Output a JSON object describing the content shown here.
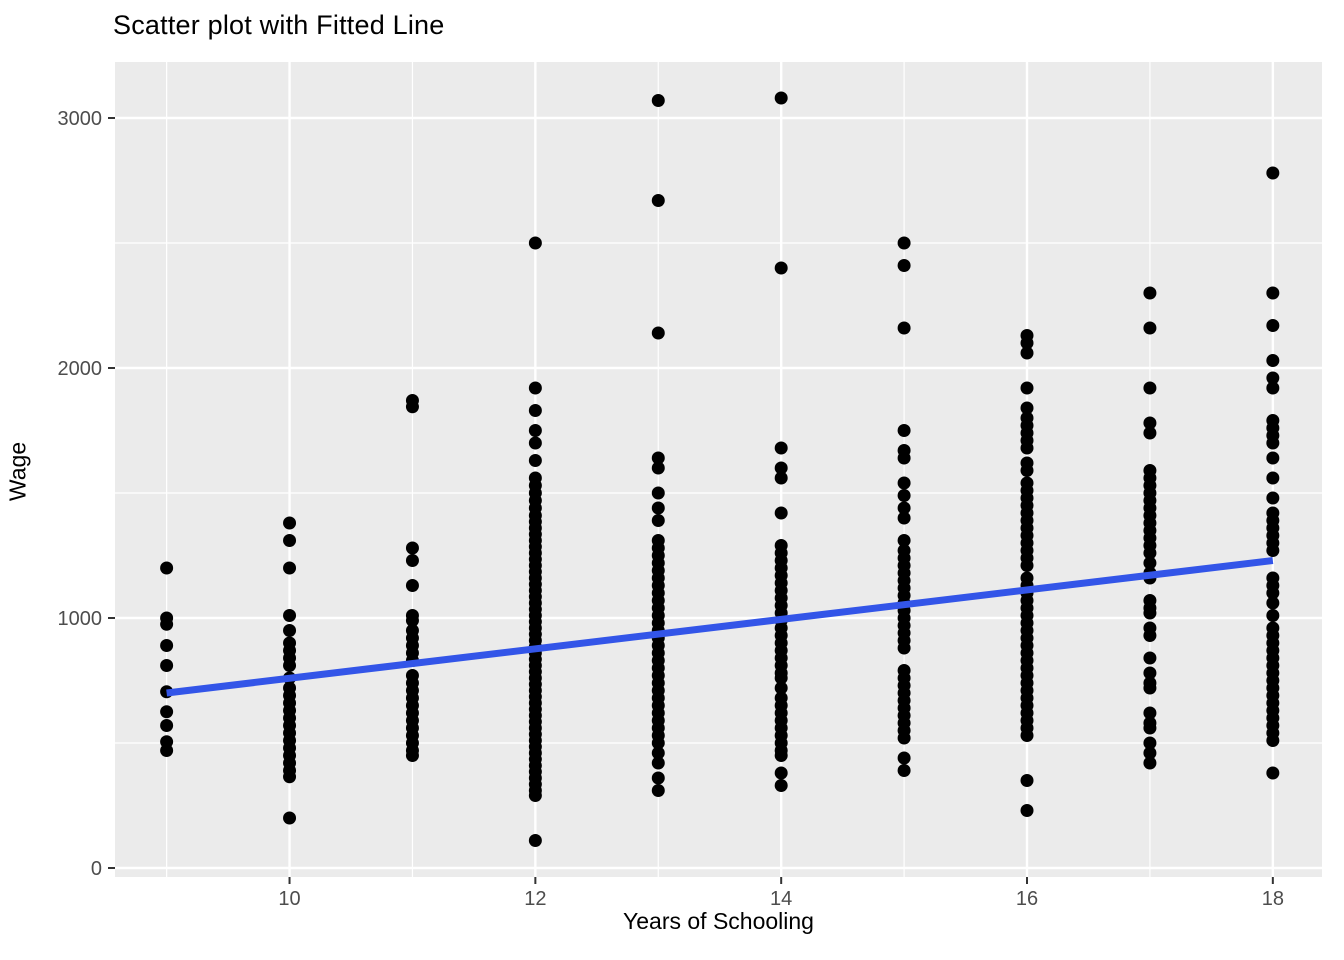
{
  "title": "Scatter plot with Fitted Line",
  "colors": {
    "page_bg": "#FFFFFF",
    "panel_bg": "#EBEBEB",
    "grid": "#FFFFFF",
    "point": "#000000",
    "fit_line": "#3355E8",
    "axis_text": "#4D4D4D",
    "tick_mark": "#333333",
    "title_text": "#000000"
  },
  "chart_data": {
    "type": "scatter",
    "title": "Scatter plot with Fitted Line",
    "xlabel": "Years of Schooling",
    "ylabel": "Wage",
    "x_ticks": [
      10,
      12,
      14,
      16,
      18
    ],
    "x_minor_ticks": [
      9,
      11,
      13,
      15,
      17
    ],
    "y_ticks": [
      0,
      1000,
      2000,
      3000
    ],
    "y_minor_ticks": [
      500,
      1500,
      2500
    ],
    "xlim": [
      8.58,
      18.4
    ],
    "ylim": [
      -36,
      3224
    ],
    "grid": true,
    "legend": false,
    "point_radius_px": 6.5,
    "fitted_line": {
      "x1": 9,
      "y1": 700,
      "x2": 18,
      "y2": 1230,
      "stroke_width_px": 7
    },
    "series": [
      {
        "x": 9,
        "wages": [
          1200,
          1000,
          975,
          890,
          810,
          705,
          625,
          570,
          505,
          470
        ]
      },
      {
        "x": 10,
        "wages": [
          1380,
          1310,
          1200,
          1010,
          950,
          900,
          870,
          840,
          810,
          760,
          720,
          690,
          660,
          630,
          600,
          570,
          540,
          510,
          480,
          450,
          420,
          390,
          365,
          200
        ]
      },
      {
        "x": 11,
        "wages": [
          1870,
          1845,
          1280,
          1230,
          1130,
          1010,
          990,
          950,
          920,
          890,
          860,
          830,
          770,
          740,
          710,
          680,
          650,
          620,
          590,
          560,
          530,
          500,
          470,
          450
        ]
      },
      {
        "x": 12,
        "wages": [
          2500,
          1920,
          1830,
          1750,
          1700,
          1630,
          1560,
          1530,
          1500,
          1470,
          1440,
          1410,
          1385,
          1360,
          1335,
          1310,
          1285,
          1260,
          1235,
          1210,
          1185,
          1160,
          1135,
          1110,
          1085,
          1060,
          1035,
          1010,
          985,
          960,
          935,
          910,
          885,
          860,
          835,
          810,
          785,
          760,
          735,
          710,
          685,
          660,
          635,
          610,
          585,
          560,
          535,
          510,
          485,
          460,
          435,
          410,
          385,
          360,
          335,
          310,
          290,
          110
        ]
      },
      {
        "x": 13,
        "wages": [
          3070,
          2670,
          2140,
          1640,
          1600,
          1500,
          1440,
          1390,
          1310,
          1280,
          1250,
          1220,
          1190,
          1160,
          1130,
          1100,
          1070,
          1040,
          1010,
          980,
          950,
          920,
          890,
          860,
          830,
          800,
          770,
          740,
          710,
          680,
          650,
          620,
          590,
          560,
          530,
          500,
          460,
          420,
          360,
          310
        ]
      },
      {
        "x": 14,
        "wages": [
          3080,
          2400,
          1680,
          1600,
          1560,
          1420,
          1290,
          1260,
          1230,
          1200,
          1170,
          1140,
          1110,
          1080,
          1050,
          1020,
          990,
          960,
          930,
          900,
          870,
          840,
          810,
          780,
          760,
          720,
          680,
          650,
          620,
          590,
          560,
          530,
          500,
          470,
          450,
          380,
          330
        ]
      },
      {
        "x": 15,
        "wages": [
          2500,
          2410,
          2160,
          1750,
          1670,
          1640,
          1540,
          1490,
          1440,
          1400,
          1310,
          1270,
          1240,
          1210,
          1180,
          1150,
          1120,
          1090,
          1060,
          1030,
          1000,
          970,
          940,
          910,
          880,
          790,
          760,
          730,
          700,
          670,
          640,
          610,
          580,
          550,
          520,
          440,
          390
        ]
      },
      {
        "x": 16,
        "wages": [
          2130,
          2100,
          2060,
          1920,
          1840,
          1800,
          1770,
          1740,
          1710,
          1680,
          1620,
          1590,
          1540,
          1510,
          1480,
          1450,
          1420,
          1390,
          1360,
          1330,
          1300,
          1270,
          1240,
          1210,
          1160,
          1130,
          1100,
          1070,
          1040,
          1010,
          980,
          950,
          920,
          890,
          860,
          830,
          800,
          770,
          740,
          710,
          680,
          650,
          620,
          590,
          560,
          530,
          350,
          230
        ]
      },
      {
        "x": 17,
        "wages": [
          2300,
          2160,
          1920,
          1780,
          1740,
          1590,
          1560,
          1530,
          1500,
          1470,
          1440,
          1410,
          1380,
          1350,
          1320,
          1290,
          1260,
          1220,
          1180,
          1160,
          1070,
          1040,
          1020,
          960,
          930,
          840,
          780,
          740,
          720,
          620,
          580,
          560,
          500,
          460,
          420
        ]
      },
      {
        "x": 18,
        "wages": [
          2780,
          2300,
          2170,
          2030,
          1960,
          1920,
          1790,
          1760,
          1730,
          1700,
          1640,
          1560,
          1480,
          1420,
          1390,
          1360,
          1330,
          1300,
          1270,
          1160,
          1130,
          1100,
          1060,
          1010,
          960,
          930,
          900,
          870,
          840,
          810,
          780,
          750,
          720,
          690,
          660,
          630,
          600,
          570,
          540,
          510,
          380
        ]
      }
    ]
  }
}
